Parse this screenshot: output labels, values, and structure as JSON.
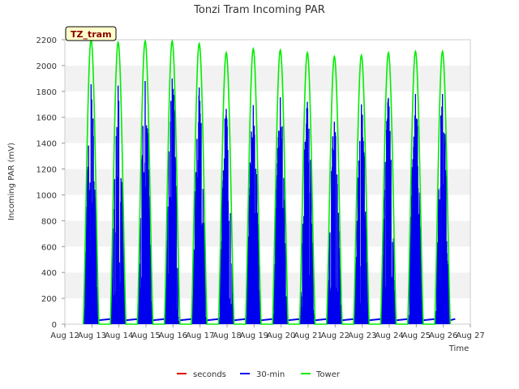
{
  "chart_data": {
    "type": "line",
    "title": "Tonzi Tram Incoming PAR",
    "xlabel": "Time",
    "ylabel": "Incoming PAR (mV)",
    "tag": "TZ_tram",
    "ylim": [
      0,
      2200
    ],
    "xlim_days": [
      12,
      27
    ],
    "y_ticks": [
      0,
      200,
      400,
      600,
      800,
      1000,
      1200,
      1400,
      1600,
      1800,
      2000,
      2200
    ],
    "x_ticks": [
      {
        "day": 12,
        "label": "Aug 12"
      },
      {
        "day": 13,
        "label": "Aug 13"
      },
      {
        "day": 14,
        "label": "Aug 14"
      },
      {
        "day": 15,
        "label": "Aug 15"
      },
      {
        "day": 16,
        "label": "Aug 16"
      },
      {
        "day": 17,
        "label": "Aug 17"
      },
      {
        "day": 18,
        "label": "Aug 18"
      },
      {
        "day": 19,
        "label": "Aug 19"
      },
      {
        "day": 20,
        "label": "Aug 20"
      },
      {
        "day": 21,
        "label": "Aug 21"
      },
      {
        "day": 22,
        "label": "Aug 22"
      },
      {
        "day": 23,
        "label": "Aug 23"
      },
      {
        "day": 24,
        "label": "Aug 24"
      },
      {
        "day": 25,
        "label": "Aug 25"
      },
      {
        "day": 26,
        "label": "Aug 26"
      },
      {
        "day": 27,
        "label": "Aug 27"
      }
    ],
    "grid": "horizontal bands",
    "legend_position": "bottom-center",
    "series": [
      {
        "name": "seconds",
        "color": "#dd0000",
        "values": []
      },
      {
        "name": "30-min",
        "color": "#0000ee",
        "daily_peaks": [
          {
            "day": 12.97,
            "peak": 1855
          },
          {
            "day": 13.97,
            "peak": 1845
          },
          {
            "day": 14.97,
            "peak": 1880
          },
          {
            "day": 15.97,
            "peak": 1900
          },
          {
            "day": 16.97,
            "peak": 1830
          },
          {
            "day": 17.97,
            "peak": 1665
          },
          {
            "day": 18.97,
            "peak": 1695
          },
          {
            "day": 19.97,
            "peak": 1755
          },
          {
            "day": 20.97,
            "peak": 1720
          },
          {
            "day": 21.97,
            "peak": 1565
          },
          {
            "day": 22.97,
            "peak": 1700
          },
          {
            "day": 23.97,
            "peak": 1750
          },
          {
            "day": 24.97,
            "peak": 1780
          },
          {
            "day": 25.97,
            "peak": 1780
          }
        ],
        "night_baseline": 30
      },
      {
        "name": "Tower",
        "color": "#00ee00",
        "daily_peaks": [
          {
            "day": 12.97,
            "peak": 2200
          },
          {
            "day": 13.97,
            "peak": 2180
          },
          {
            "day": 14.97,
            "peak": 2190
          },
          {
            "day": 15.97,
            "peak": 2190
          },
          {
            "day": 16.97,
            "peak": 2170
          },
          {
            "day": 17.97,
            "peak": 2100
          },
          {
            "day": 18.97,
            "peak": 2130
          },
          {
            "day": 19.97,
            "peak": 2120
          },
          {
            "day": 20.97,
            "peak": 2100
          },
          {
            "day": 21.97,
            "peak": 2070
          },
          {
            "day": 22.97,
            "peak": 2080
          },
          {
            "day": 23.97,
            "peak": 2100
          },
          {
            "day": 24.97,
            "peak": 2110
          },
          {
            "day": 25.97,
            "peak": 2110
          }
        ],
        "night_baseline": 0
      }
    ]
  }
}
